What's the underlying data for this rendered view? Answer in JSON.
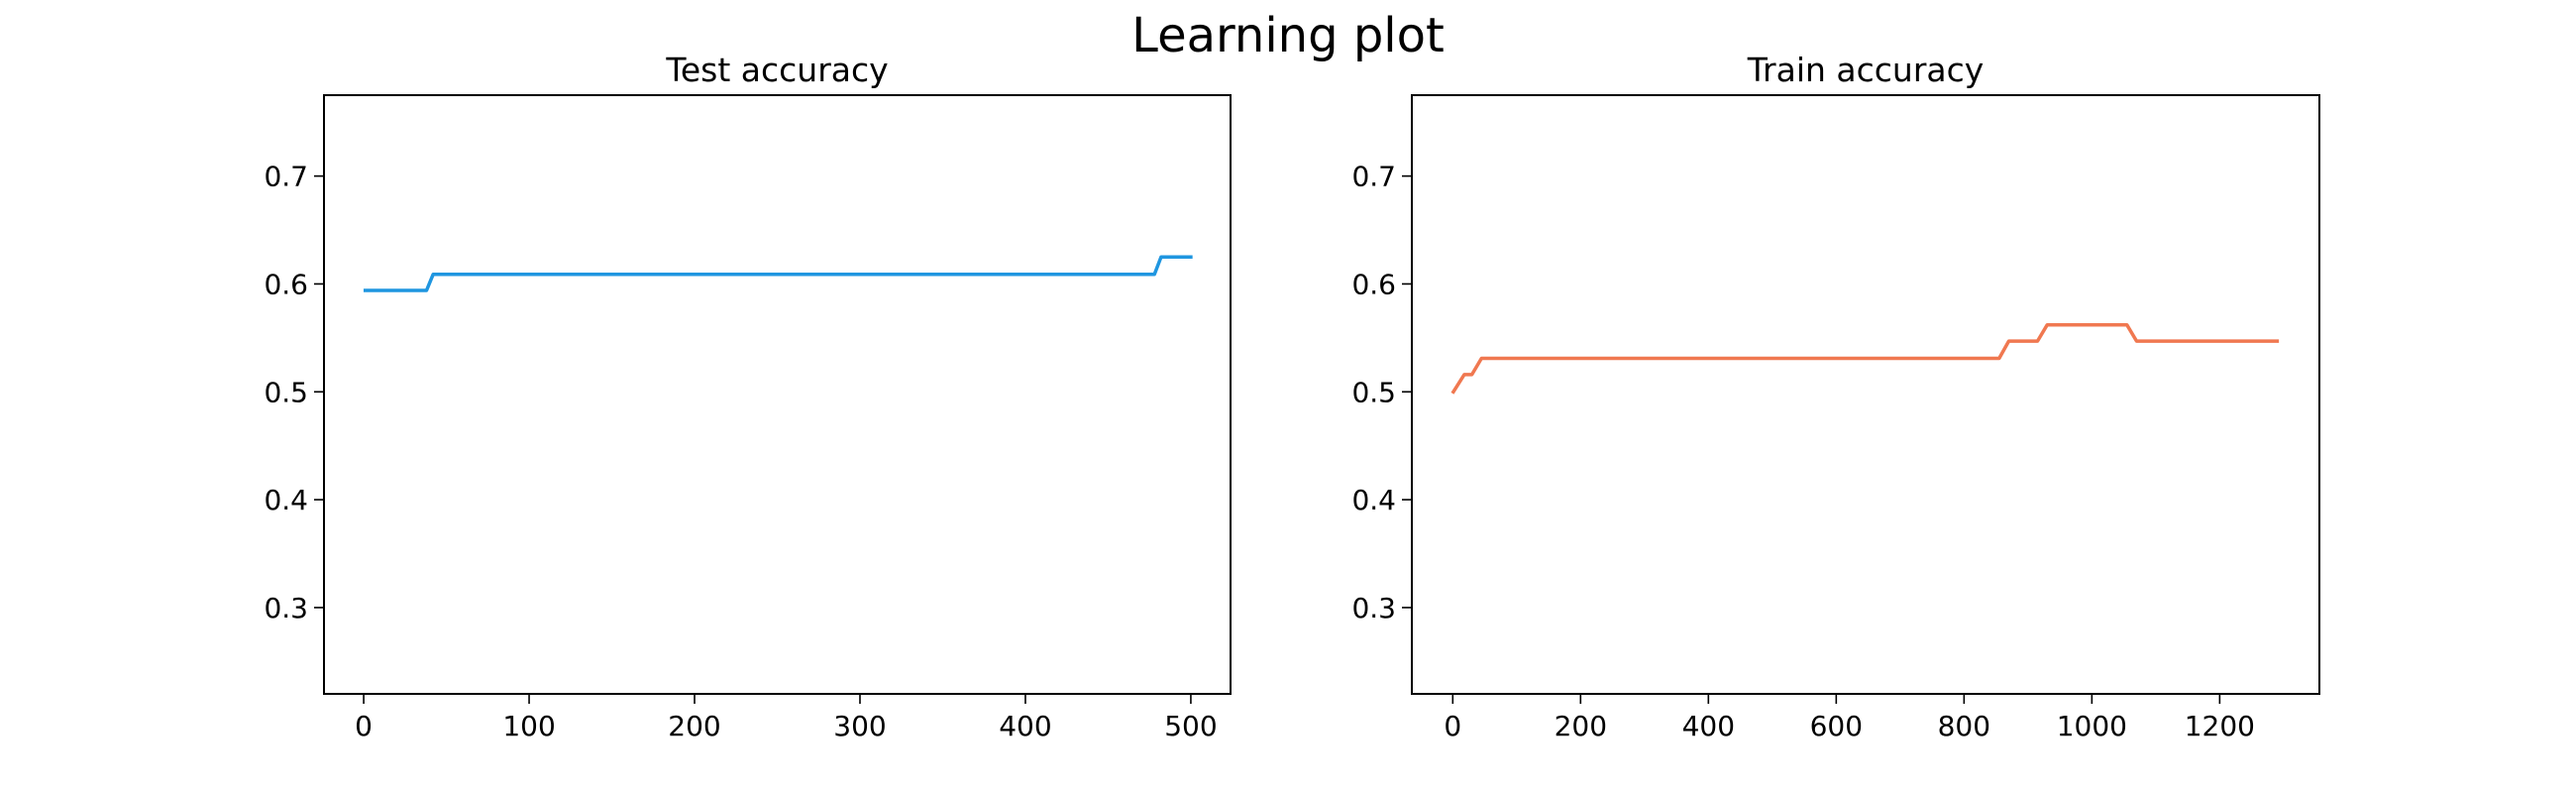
{
  "figure": {
    "title": "Learning plot"
  },
  "chart_data": [
    {
      "type": "line",
      "title": "Test accuracy",
      "xlabel": "",
      "ylabel": "",
      "xlim": [
        -24,
        524
      ],
      "ylim": [
        0.22,
        0.775
      ],
      "xticks": [
        0,
        100,
        200,
        300,
        400,
        500
      ],
      "yticks": [
        0.3,
        0.4,
        0.5,
        0.6,
        0.7
      ],
      "grid": false,
      "series": [
        {
          "color": "#1f96e0",
          "x": [
            1,
            38,
            42,
            478,
            482,
            500
          ],
          "y": [
            0.594,
            0.594,
            0.609,
            0.609,
            0.625,
            0.625
          ]
        }
      ]
    },
    {
      "type": "line",
      "title": "Train accuracy",
      "xlabel": "",
      "ylabel": "",
      "xlim": [
        -64,
        1356
      ],
      "ylim": [
        0.22,
        0.775
      ],
      "xticks": [
        0,
        200,
        400,
        600,
        800,
        1000,
        1200
      ],
      "yticks": [
        0.3,
        0.4,
        0.5,
        0.6,
        0.7
      ],
      "grid": false,
      "series": [
        {
          "color": "#f07850",
          "x": [
            1,
            18,
            30,
            45,
            855,
            870,
            915,
            930,
            1055,
            1070,
            1290
          ],
          "y": [
            0.5,
            0.516,
            0.516,
            0.531,
            0.531,
            0.547,
            0.547,
            0.562,
            0.562,
            0.547,
            0.547
          ]
        }
      ]
    }
  ]
}
